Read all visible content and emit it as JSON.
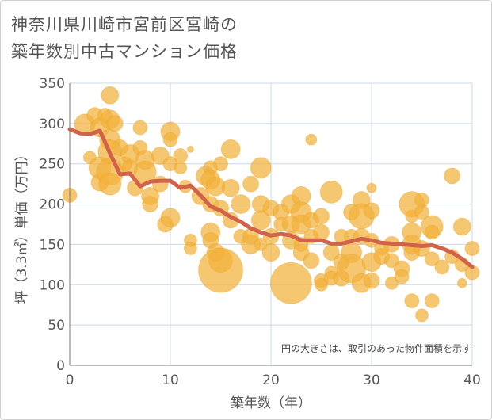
{
  "chart_data": {
    "type": "scatter",
    "title_lines": [
      "神奈川県川崎市宮前区宮崎の",
      "築年数別中古マンション価格"
    ],
    "xlabel": "築年数（年）",
    "ylabel": "坪（3.3㎡）単価（万円）",
    "xlim": [
      0,
      40
    ],
    "ylim": [
      0,
      350
    ],
    "xticks": [
      0,
      10,
      20,
      30,
      40
    ],
    "yticks": [
      0,
      50,
      100,
      150,
      200,
      250,
      300,
      350
    ],
    "grid": true,
    "annotation": "円の大きさは、取引のあった物件面積を示す",
    "colors": {
      "bubble": "#f2b23a",
      "line": "#d0634a",
      "grid": "#c8d8e8"
    },
    "trend": {
      "x": [
        0,
        1,
        2,
        3,
        4,
        5,
        6,
        7,
        8,
        9,
        10,
        11,
        12,
        13,
        14,
        15,
        16,
        17,
        18,
        19,
        20,
        21,
        22,
        23,
        24,
        25,
        26,
        27,
        28,
        29,
        30,
        31,
        32,
        33,
        34,
        35,
        36,
        37,
        38,
        39,
        40
      ],
      "y": [
        293,
        288,
        287,
        291,
        263,
        237,
        238,
        222,
        228,
        229,
        229,
        220,
        223,
        211,
        197,
        192,
        184,
        178,
        170,
        165,
        161,
        163,
        161,
        155,
        155,
        155,
        151,
        151,
        154,
        157,
        155,
        152,
        151,
        150,
        149,
        148,
        149,
        145,
        140,
        132,
        122
      ]
    },
    "points": [
      [
        0,
        211,
        9
      ],
      [
        1.5,
        299,
        13
      ],
      [
        2,
        258,
        8
      ],
      [
        2.5,
        310,
        10
      ],
      [
        3,
        295,
        12
      ],
      [
        3,
        245,
        14
      ],
      [
        3,
        227,
        11
      ],
      [
        3.5,
        310,
        9
      ],
      [
        4,
        335,
        11
      ],
      [
        4,
        305,
        12
      ],
      [
        4,
        280,
        13
      ],
      [
        4,
        265,
        15
      ],
      [
        4,
        240,
        17
      ],
      [
        4,
        225,
        14
      ],
      [
        4.5,
        300,
        10
      ],
      [
        5,
        270,
        10
      ],
      [
        5.5,
        250,
        9
      ],
      [
        6,
        262,
        12
      ],
      [
        6,
        245,
        10
      ],
      [
        6.5,
        220,
        10
      ],
      [
        7,
        295,
        9
      ],
      [
        7,
        270,
        9
      ],
      [
        7.5,
        240,
        14
      ],
      [
        7.5,
        255,
        12
      ],
      [
        8,
        210,
        11
      ],
      [
        8,
        200,
        10
      ],
      [
        9,
        225,
        10
      ],
      [
        9,
        260,
        11
      ],
      [
        9.5,
        175,
        10
      ],
      [
        10,
        290,
        12
      ],
      [
        10,
        280,
        9
      ],
      [
        10,
        250,
        9
      ],
      [
        10,
        183,
        12
      ],
      [
        11,
        260,
        9
      ],
      [
        11,
        245,
        8
      ],
      [
        11.5,
        222,
        8
      ],
      [
        12,
        268,
        4
      ],
      [
        12,
        155,
        8
      ],
      [
        12,
        145,
        8
      ],
      [
        13,
        210,
        11
      ],
      [
        13.5,
        235,
        12
      ],
      [
        14,
        245,
        9
      ],
      [
        14,
        230,
        12
      ],
      [
        14,
        200,
        10
      ],
      [
        14,
        165,
        12
      ],
      [
        14,
        155,
        10
      ],
      [
        14.5,
        222,
        12
      ],
      [
        14.5,
        140,
        11
      ],
      [
        15,
        250,
        9
      ],
      [
        15,
        195,
        10
      ],
      [
        15,
        130,
        15
      ],
      [
        15,
        118,
        28
      ],
      [
        16,
        268,
        12
      ],
      [
        16,
        220,
        11
      ],
      [
        16,
        180,
        10
      ],
      [
        17,
        200,
        12
      ],
      [
        17,
        160,
        9
      ],
      [
        18,
        225,
        10
      ],
      [
        18,
        160,
        10
      ],
      [
        18,
        150,
        12
      ],
      [
        19,
        245,
        13
      ],
      [
        19,
        200,
        11
      ],
      [
        19,
        180,
        12
      ],
      [
        19,
        150,
        8
      ],
      [
        20,
        195,
        10
      ],
      [
        20,
        160,
        10
      ],
      [
        20,
        140,
        11
      ],
      [
        21,
        190,
        10
      ],
      [
        21,
        175,
        9
      ],
      [
        22,
        200,
        12
      ],
      [
        22,
        175,
        11
      ],
      [
        22,
        155,
        11
      ],
      [
        22,
        102,
        26
      ],
      [
        23,
        210,
        12
      ],
      [
        23,
        190,
        13
      ],
      [
        23,
        175,
        12
      ],
      [
        23,
        150,
        9
      ],
      [
        23,
        140,
        10
      ],
      [
        24,
        280,
        7
      ],
      [
        24,
        180,
        10
      ],
      [
        24,
        160,
        9
      ],
      [
        24,
        130,
        10
      ],
      [
        25,
        185,
        10
      ],
      [
        25,
        165,
        10
      ],
      [
        25,
        105,
        9
      ],
      [
        25,
        100,
        8
      ],
      [
        26,
        215,
        14
      ],
      [
        26,
        140,
        10
      ],
      [
        26,
        115,
        8
      ],
      [
        26,
        108,
        9
      ],
      [
        27,
        160,
        9
      ],
      [
        27,
        128,
        10
      ],
      [
        27,
        108,
        10
      ],
      [
        28,
        190,
        10
      ],
      [
        28,
        160,
        9
      ],
      [
        28,
        140,
        13
      ],
      [
        28,
        120,
        18
      ],
      [
        29,
        205,
        11
      ],
      [
        29,
        185,
        16
      ],
      [
        29,
        160,
        10
      ],
      [
        29,
        102,
        12
      ],
      [
        30,
        220,
        6
      ],
      [
        30,
        192,
        10
      ],
      [
        30,
        155,
        9
      ],
      [
        30,
        128,
        12
      ],
      [
        30,
        105,
        10
      ],
      [
        31,
        145,
        9
      ],
      [
        31,
        135,
        10
      ],
      [
        32,
        150,
        10
      ],
      [
        32,
        130,
        9
      ],
      [
        32,
        102,
        8
      ],
      [
        33,
        120,
        10
      ],
      [
        33,
        110,
        9
      ],
      [
        34,
        185,
        8
      ],
      [
        34,
        200,
        16
      ],
      [
        34,
        165,
        12
      ],
      [
        34,
        150,
        12
      ],
      [
        34,
        140,
        10
      ],
      [
        34,
        80,
        9
      ],
      [
        35,
        205,
        9
      ],
      [
        35,
        190,
        9
      ],
      [
        35,
        145,
        10
      ],
      [
        35,
        62,
        8
      ],
      [
        36,
        172,
        14
      ],
      [
        36,
        165,
        9
      ],
      [
        36,
        132,
        9
      ],
      [
        36,
        80,
        9
      ],
      [
        37,
        122,
        9
      ],
      [
        38,
        235,
        10
      ],
      [
        38,
        135,
        9
      ],
      [
        39,
        172,
        11
      ],
      [
        39,
        125,
        9
      ],
      [
        39,
        102,
        6
      ],
      [
        40,
        145,
        9
      ],
      [
        40,
        115,
        9
      ]
    ]
  }
}
